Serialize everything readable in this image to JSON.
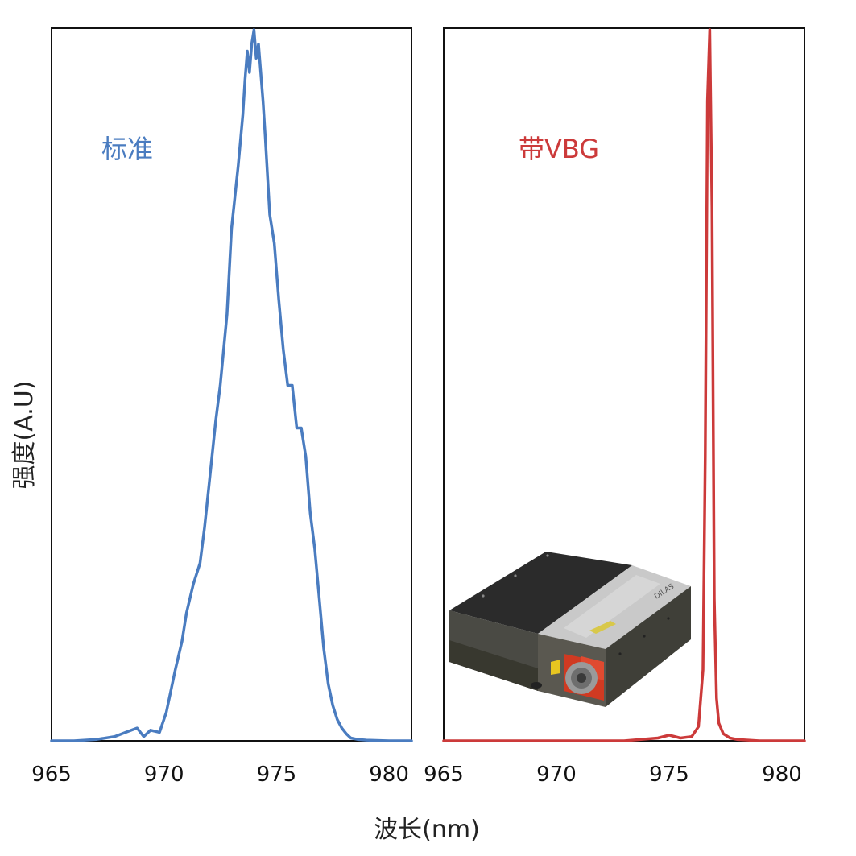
{
  "colors": {
    "standard": "#4a7cc0",
    "vbg": "#cc3a3a",
    "frame": "#111111"
  },
  "axis_titles": {
    "x": "波长(nm)",
    "y": "强度(A.U)"
  },
  "chart_data": [
    {
      "type": "line",
      "title": "",
      "xlabel": "波长(nm)",
      "ylabel": "强度(A.U)",
      "xlim": [
        965,
        981
      ],
      "ylim": [
        0,
        1
      ],
      "x_ticks": [
        965,
        970,
        975,
        980
      ],
      "x_tick_labels": [
        "965",
        "970",
        "975",
        "980"
      ],
      "y_ticks_shown": false,
      "grid": false,
      "legend": "none",
      "annotation": "标准",
      "series": [
        {
          "color": "#4a7cc0",
          "x": [
            965.0,
            966.0,
            967.0,
            967.8,
            968.3,
            968.8,
            969.1,
            969.4,
            969.8,
            970.1,
            970.3,
            970.5,
            970.8,
            971.0,
            971.3,
            971.6,
            971.8,
            972.0,
            972.3,
            972.5,
            972.8,
            973.0,
            973.3,
            973.5,
            973.6,
            973.7,
            973.8,
            973.9,
            974.0,
            974.1,
            974.2,
            974.3,
            974.4,
            974.5,
            974.7,
            974.9,
            975.1,
            975.3,
            975.5,
            975.7,
            975.9,
            976.1,
            976.3,
            976.5,
            976.7,
            976.9,
            977.1,
            977.3,
            977.5,
            977.7,
            977.9,
            978.1,
            978.3,
            978.6,
            979.0,
            980.0,
            981.0
          ],
          "y": [
            0.0,
            0.0,
            0.002,
            0.006,
            0.012,
            0.018,
            0.006,
            0.015,
            0.012,
            0.04,
            0.07,
            0.1,
            0.14,
            0.18,
            0.22,
            0.25,
            0.3,
            0.36,
            0.45,
            0.5,
            0.6,
            0.72,
            0.81,
            0.88,
            0.93,
            0.97,
            0.94,
            0.98,
            1.0,
            0.96,
            0.98,
            0.94,
            0.9,
            0.85,
            0.74,
            0.7,
            0.62,
            0.55,
            0.5,
            0.5,
            0.44,
            0.44,
            0.4,
            0.32,
            0.27,
            0.2,
            0.13,
            0.08,
            0.05,
            0.03,
            0.018,
            0.01,
            0.004,
            0.002,
            0.001,
            0.0,
            0.0
          ]
        }
      ]
    },
    {
      "type": "line",
      "title": "",
      "xlabel": "波长(nm)",
      "ylabel": "",
      "xlim": [
        965,
        981
      ],
      "ylim": [
        0,
        1
      ],
      "x_ticks": [
        965,
        970,
        975,
        980
      ],
      "x_tick_labels": [
        "965",
        "970",
        "975",
        "980"
      ],
      "y_ticks_shown": false,
      "grid": false,
      "legend": "none",
      "annotation": "带VBG",
      "series": [
        {
          "color": "#cc3a3a",
          "x": [
            965.0,
            970.0,
            973.0,
            974.5,
            975.0,
            975.5,
            976.0,
            976.3,
            976.5,
            976.6,
            976.7,
            976.8,
            976.9,
            977.0,
            977.1,
            977.2,
            977.4,
            977.7,
            978.0,
            979.0,
            981.0
          ],
          "y": [
            0.0,
            0.0,
            0.0,
            0.004,
            0.008,
            0.004,
            0.006,
            0.02,
            0.1,
            0.4,
            0.9,
            1.0,
            0.75,
            0.2,
            0.06,
            0.025,
            0.01,
            0.004,
            0.002,
            0.0,
            0.0
          ]
        }
      ]
    }
  ],
  "inset_image": {
    "name": "laser-module-photo",
    "brand_mark": "DILAS"
  }
}
